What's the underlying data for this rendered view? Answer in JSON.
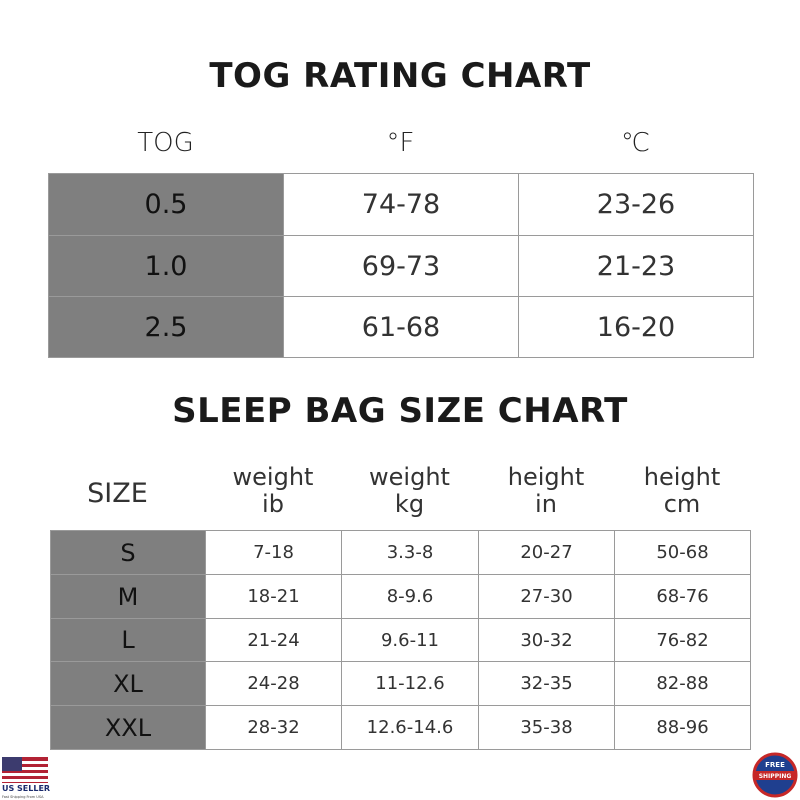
{
  "tog_chart": {
    "title": "TOG RATING CHART",
    "headers": [
      "TOG",
      "°F",
      "℃"
    ],
    "rows": [
      [
        "0.5",
        "74-78",
        "23-26"
      ],
      [
        "1.0",
        "69-73",
        "21-23"
      ],
      [
        "2.5",
        "61-68",
        "16-20"
      ]
    ]
  },
  "size_chart": {
    "title": "SLEEP BAG SIZE CHART",
    "headers": [
      {
        "lines": [
          "SIZE"
        ]
      },
      {
        "lines": [
          "weight",
          "ib"
        ]
      },
      {
        "lines": [
          "weight",
          "kg"
        ]
      },
      {
        "lines": [
          "height",
          "in"
        ]
      },
      {
        "lines": [
          "height",
          "cm"
        ]
      }
    ],
    "rows": [
      [
        "S",
        "7-18",
        "3.3-8",
        "20-27",
        "50-68"
      ],
      [
        "M",
        "18-21",
        "8-9.6",
        "27-30",
        "68-76"
      ],
      [
        "L",
        "21-24",
        "9.6-11",
        "30-32",
        "76-82"
      ],
      [
        "XL",
        "24-28",
        "11-12.6",
        "32-35",
        "82-88"
      ],
      [
        "XXL",
        "28-32",
        "12.6-14.6",
        "35-38",
        "88-96"
      ]
    ]
  },
  "badges": {
    "seller": "US SELLER",
    "seller_note": "Fast Shipping From USA",
    "shipping_top": "FREE",
    "shipping_bottom": "SHIPPING"
  }
}
